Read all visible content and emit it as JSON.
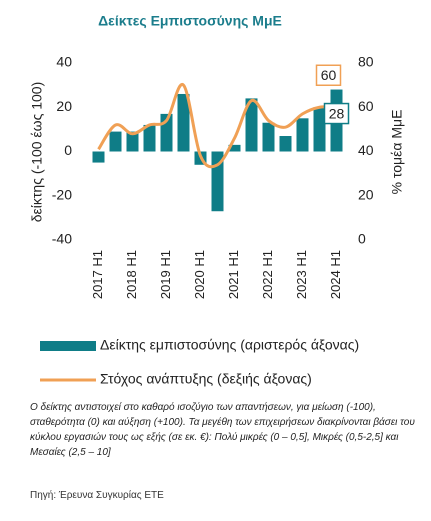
{
  "chart_data": {
    "type": "bar-line",
    "title": "Δείκτες Εμπιστοσύνης ΜμΕ",
    "categories": [
      "2017 H1",
      null,
      "2018 H1",
      null,
      "2019 H1",
      null,
      "2020 H1",
      null,
      "2021 H1",
      null,
      "2022 H1",
      null,
      "2023 H1",
      null,
      "2024 H1"
    ],
    "series": [
      {
        "name": "Δείκτης εμπιστοσύνης (αριστερός άξονας)",
        "type": "bar",
        "color": "#0f7d87",
        "values": [
          -5,
          9,
          9,
          12,
          17,
          26,
          -6,
          -27,
          3,
          24,
          13,
          7,
          15,
          20,
          28
        ],
        "value_labels": [
          null,
          null,
          null,
          null,
          null,
          null,
          null,
          null,
          null,
          null,
          null,
          null,
          null,
          null,
          "28"
        ]
      },
      {
        "name": "Στόχος ανάπτυξης (δεξιής άξονας)",
        "type": "line",
        "axis": "y2",
        "color": "#f0a055",
        "values": [
          41,
          52,
          48,
          52,
          54,
          70,
          38,
          34,
          46,
          63,
          54,
          51,
          57,
          60,
          60
        ],
        "value_labels": [
          null,
          null,
          null,
          null,
          null,
          null,
          null,
          null,
          null,
          null,
          null,
          null,
          null,
          null,
          "60"
        ]
      }
    ],
    "ylabel": "δείκτης (-100 έως 100)",
    "y2label": "% τομέα ΜμΕ",
    "ylim": [
      -40,
      40
    ],
    "yticks": [
      -40,
      -20,
      0,
      20,
      40
    ],
    "y2lim": [
      0,
      80
    ],
    "y2ticks": [
      0,
      20,
      40,
      60,
      80
    ],
    "note": "Ο δείκτης αντιστοιχεί στο καθαρό ισοζύγιο των απαντήσεων, για μείωση (-100), σταθερότητα (0) και αύξηση (+100). Τα μεγέθη των επιχειρήσεων διακρίνονται βάσει του κύκλου εργασιών τους ως εξής (σε εκ. €): Πολύ μικρές (0 – 0,5], Μικρές (0,5-2,5] και Μεσαίες (2,5 – 10]",
    "source": "Πηγή:  Έρευνα Συγκυρίας ΕΤΕ"
  }
}
